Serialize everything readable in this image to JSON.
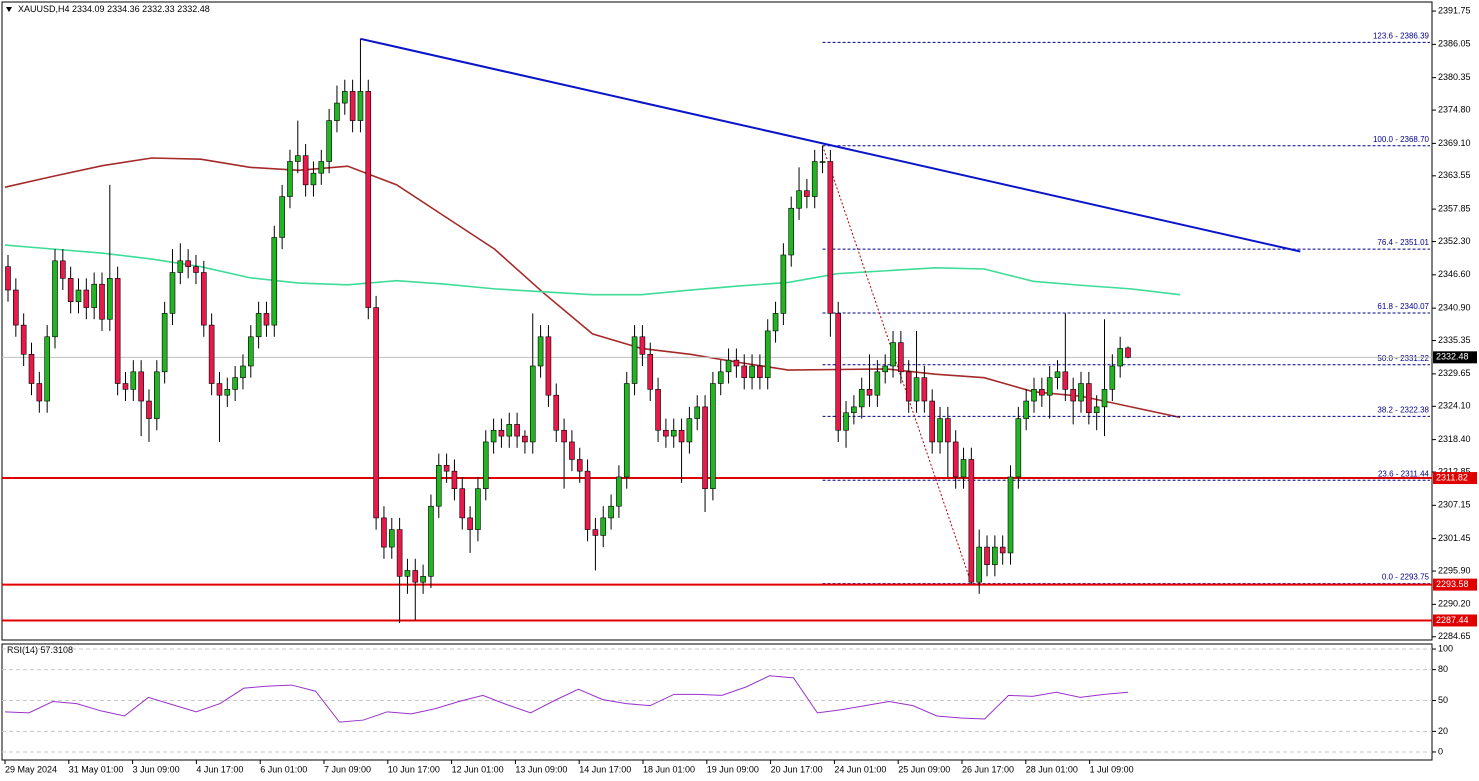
{
  "chart_data": [
    {
      "type": "candlestick",
      "symbol": "XAUUSD,H4",
      "up_color": "#22b422",
      "down_color": "#e8194b",
      "open": [
        2348,
        2344,
        2338,
        2333,
        2328,
        2325,
        2336,
        2349,
        2346,
        2342,
        2344,
        2341,
        2345,
        2339,
        2346,
        2328,
        2327,
        2330,
        2325,
        2322,
        2330,
        2340,
        2347,
        2349,
        2348,
        2347,
        2338,
        2328,
        2326,
        2327,
        2329,
        2331,
        2336,
        2340,
        2338,
        2353,
        2360,
        2366,
        2367,
        2362,
        2364,
        2366,
        2373,
        2376,
        2378,
        2373,
        2378,
        2341,
        2305,
        2300,
        2303,
        2295,
        2296,
        2294,
        2295,
        2307,
        2314,
        2313,
        2310,
        2305,
        2303,
        2310,
        2318,
        2320,
        2319,
        2321,
        2319,
        2318,
        2331,
        2336,
        2326,
        2320,
        2318,
        2315,
        2313,
        2303,
        2302,
        2305,
        2307,
        2312,
        2328,
        2336,
        2333,
        2327,
        2320,
        2319,
        2320,
        2318,
        2322,
        2324,
        2310,
        2328,
        2330,
        2332,
        2331,
        2329,
        2331,
        2329,
        2337,
        2340,
        2350,
        2358,
        2361,
        2360,
        2366,
        2366,
        2340,
        2320,
        2323,
        2324,
        2327,
        2326,
        2330,
        2331,
        2335,
        2330,
        2325,
        2329,
        2325,
        2318,
        2322,
        2318,
        2312,
        2315,
        2294,
        2300,
        2297,
        2300,
        2299,
        2312,
        2322,
        2325,
        2327,
        2326,
        2329,
        2330,
        2327,
        2325,
        2328,
        2323,
        2324,
        2327,
        2331,
        2334.09
      ],
      "high": [
        2350,
        2346,
        2340,
        2335,
        2330,
        2338,
        2351,
        2351,
        2348,
        2346,
        2346,
        2347,
        2347,
        2362,
        2348,
        2330,
        2332,
        2332,
        2327,
        2332,
        2342,
        2351,
        2352,
        2351,
        2350,
        2349,
        2340,
        2330,
        2329,
        2331,
        2333,
        2338,
        2342,
        2342,
        2355,
        2362,
        2368,
        2373,
        2369,
        2366,
        2368,
        2375,
        2379,
        2380,
        2380,
        2387,
        2380,
        2343,
        2307,
        2305,
        2305,
        2298,
        2298,
        2297,
        2309,
        2316,
        2316,
        2315,
        2312,
        2307,
        2312,
        2320,
        2322,
        2322,
        2323,
        2323,
        2320,
        2340,
        2338,
        2338,
        2328,
        2322,
        2320,
        2317,
        2315,
        2305,
        2307,
        2309,
        2314,
        2330,
        2338,
        2338,
        2335,
        2329,
        2322,
        2322,
        2322,
        2324,
        2326,
        2326,
        2330,
        2332,
        2334,
        2334,
        2333,
        2333,
        2333,
        2339,
        2342,
        2352,
        2360,
        2365,
        2363,
        2368,
        2368.7,
        2368,
        2342,
        2325,
        2326,
        2329,
        2333,
        2332,
        2333,
        2337,
        2337,
        2332,
        2337,
        2331,
        2327,
        2324,
        2324,
        2320,
        2317,
        2317,
        2303,
        2302,
        2302,
        2302,
        2314,
        2324,
        2327,
        2329,
        2329,
        2331,
        2332,
        2340,
        2329,
        2330,
        2330,
        2326,
        2339,
        2333,
        2336,
        2334.36
      ],
      "low": [
        2342,
        2336,
        2331,
        2326,
        2323,
        2323,
        2334,
        2344,
        2340,
        2340,
        2339,
        2339,
        2337,
        2337,
        2326,
        2325,
        2325,
        2319,
        2318,
        2320,
        2328,
        2338,
        2345,
        2346,
        2345,
        2336,
        2326,
        2318,
        2324,
        2325,
        2327,
        2329,
        2334,
        2336,
        2336,
        2351,
        2358,
        2364,
        2360,
        2360,
        2362,
        2364,
        2371,
        2374,
        2371,
        2371,
        2339,
        2303,
        2298,
        2298,
        2287,
        2292,
        2287.5,
        2292,
        2293,
        2305,
        2311,
        2308,
        2303,
        2299,
        2301,
        2308,
        2316,
        2317,
        2317,
        2317,
        2316,
        2316,
        2329,
        2324,
        2318,
        2310,
        2313,
        2311,
        2301,
        2296,
        2300,
        2303,
        2305,
        2310,
        2326,
        2331,
        2325,
        2318,
        2317,
        2317,
        2311,
        2316,
        2320,
        2306,
        2308,
        2326,
        2328,
        2329,
        2327,
        2327,
        2327,
        2327,
        2335,
        2338,
        2348,
        2356,
        2358,
        2358,
        2364,
        2336,
        2318,
        2317,
        2321,
        2322,
        2324,
        2324,
        2328,
        2329,
        2328,
        2323,
        2323,
        2323,
        2316,
        2316,
        2312,
        2310,
        2310,
        2293.75,
        2292,
        2295,
        2295,
        2297,
        2297,
        2310,
        2320,
        2323,
        2324,
        2322,
        2327,
        2325,
        2321,
        2323,
        2321,
        2320,
        2319,
        2325,
        2329,
        2332.33
      ],
      "close": [
        2344,
        2338,
        2333,
        2328,
        2325,
        2336,
        2349,
        2346,
        2342,
        2344,
        2341,
        2345,
        2339,
        2346,
        2328,
        2327,
        2330,
        2325,
        2322,
        2330,
        2340,
        2347,
        2349,
        2348,
        2347,
        2338,
        2328,
        2326,
        2327,
        2329,
        2331,
        2336,
        2340,
        2338,
        2353,
        2360,
        2366,
        2367,
        2362,
        2364,
        2366,
        2373,
        2376,
        2378,
        2373,
        2378,
        2341,
        2305,
        2300,
        2303,
        2295,
        2296,
        2294,
        2295,
        2307,
        2314,
        2313,
        2310,
        2305,
        2303,
        2310,
        2318,
        2320,
        2319,
        2321,
        2319,
        2318,
        2331,
        2336,
        2326,
        2320,
        2318,
        2315,
        2313,
        2303,
        2302,
        2305,
        2307,
        2312,
        2328,
        2336,
        2333,
        2327,
        2320,
        2319,
        2320,
        2318,
        2322,
        2324,
        2310,
        2328,
        2330,
        2332,
        2331,
        2329,
        2331,
        2329,
        2337,
        2340,
        2350,
        2358,
        2361,
        2360,
        2366,
        2366,
        2340,
        2320,
        2323,
        2324,
        2327,
        2326,
        2330,
        2331,
        2335,
        2330,
        2325,
        2329,
        2325,
        2318,
        2322,
        2318,
        2312,
        2315,
        2294,
        2300,
        2297,
        2300,
        2299,
        2312,
        2322,
        2325,
        2327,
        2326,
        2329,
        2330,
        2327,
        2325,
        2328,
        2323,
        2324,
        2327,
        2331,
        2334,
        2332.48
      ],
      "series": [
        {
          "color": "#a52a2a",
          "values": [
            2361.6,
            2363.5,
            2365.3,
            2366.6,
            2366.4,
            2365,
            2364.5,
            2365.2,
            2362,
            2356.5,
            2351,
            2343.5,
            2336.5,
            2334,
            2333,
            2331.6,
            2330.3,
            2330.4,
            2330.5,
            2329.6,
            2329,
            2326.6,
            2325.8,
            2324,
            2322.2
          ]
        },
        {
          "color": "#3ddc97",
          "values": [
            2351.7,
            2351,
            2350.3,
            2349.3,
            2348,
            2346.1,
            2345.2,
            2344.9,
            2345.6,
            2345,
            2344.2,
            2343.7,
            2343.2,
            2343.2,
            2344,
            2344.7,
            2345.3,
            2346.8,
            2347.3,
            2347.8,
            2347.6,
            2345.5,
            2344.8,
            2344.2,
            2343.2
          ]
        }
      ],
      "trendline": {
        "x": [
          45,
          165
        ],
        "y": [
          2387,
          2350.6
        ],
        "color": "#0a14c8"
      },
      "fib_swing": {
        "x": [
          104,
          123
        ],
        "y": [
          2368.7,
          2293.75
        ],
        "color": "#c00000"
      },
      "fib_color": "#00008b",
      "fib_levels": [
        {
          "value": 2386.39,
          "label": "123.6 - 2386.39"
        },
        {
          "value": 2368.7,
          "label": "100.0 - 2368.70"
        },
        {
          "value": 2351.01,
          "label": "76.4 - 2351.01"
        },
        {
          "value": 2340.07,
          "label": "61.8 - 2340.07"
        },
        {
          "value": 2331.22,
          "label": "50.0 - 2331.22"
        },
        {
          "value": 2322.38,
          "label": "38.2 - 2322.38"
        },
        {
          "value": 2311.44,
          "label": "23.6 - 2311.44"
        },
        {
          "value": 2293.75,
          "label": "0.0 - 2293.75"
        }
      ],
      "hlines": [
        2311.82,
        2293.58,
        2287.44
      ],
      "hline_color": "#e00000",
      "ylim": [
        2284.1,
        2393.3
      ],
      "yticks": [
        2391.75,
        2386.05,
        2380.35,
        {
          "value": 2374.8,
          "label": "2374.80"
        },
        {
          "value": 2369.1,
          "label": "2369.10"
        },
        2363.55,
        2357.85,
        {
          "value": 2352.3,
          "label": "2352.30"
        },
        {
          "value": 2346.6,
          "label": "2346.60"
        },
        {
          "value": 2340.9,
          "label": "2340.90"
        },
        2335.35,
        2329.65,
        {
          "value": 2324.1,
          "label": "2324.10"
        },
        {
          "value": 2318.4,
          "label": "2318.40"
        },
        2312.85,
        2307.15,
        2301.45,
        {
          "value": 2295.9,
          "label": "2295.90"
        },
        {
          "value": 2290.2,
          "label": "2290.20"
        },
        2284.65
      ],
      "x_labels": [
        "29 May 2024",
        "31 May 01:00",
        "3 Jun 09:00",
        "4 Jun 17:00",
        "6 Jun 01:00",
        "7 Jun 09:00",
        "10 Jun 17:00",
        "12 Jun 01:00",
        "13 Jun 09:00",
        "14 Jun 17:00",
        "18 Jun 01:00",
        "19 Jun 09:00",
        "20 Jun 17:00",
        "24 Jun 01:00",
        "25 Jun 09:00",
        "26 Jun 17:00",
        "28 Jun 01:00",
        "1 Jul 09:00"
      ]
    },
    {
      "type": "line",
      "name": "RSI(14)",
      "current": 57.3108,
      "color": "#9932cc",
      "values": [
        39,
        38,
        49,
        47,
        40,
        35,
        53,
        46,
        39,
        47,
        62,
        64,
        65,
        59,
        29,
        31,
        39,
        37,
        42,
        49,
        55,
        46,
        38,
        50,
        61,
        51,
        47,
        45,
        56,
        56,
        55,
        63,
        74,
        72,
        38,
        41,
        45,
        49,
        45,
        35,
        33,
        32,
        55,
        54,
        58,
        53,
        56,
        58
      ],
      "ylim": [
        -7.8,
        104.9
      ],
      "yticks": [
        100,
        80,
        50,
        20,
        0
      ]
    }
  ]
}
